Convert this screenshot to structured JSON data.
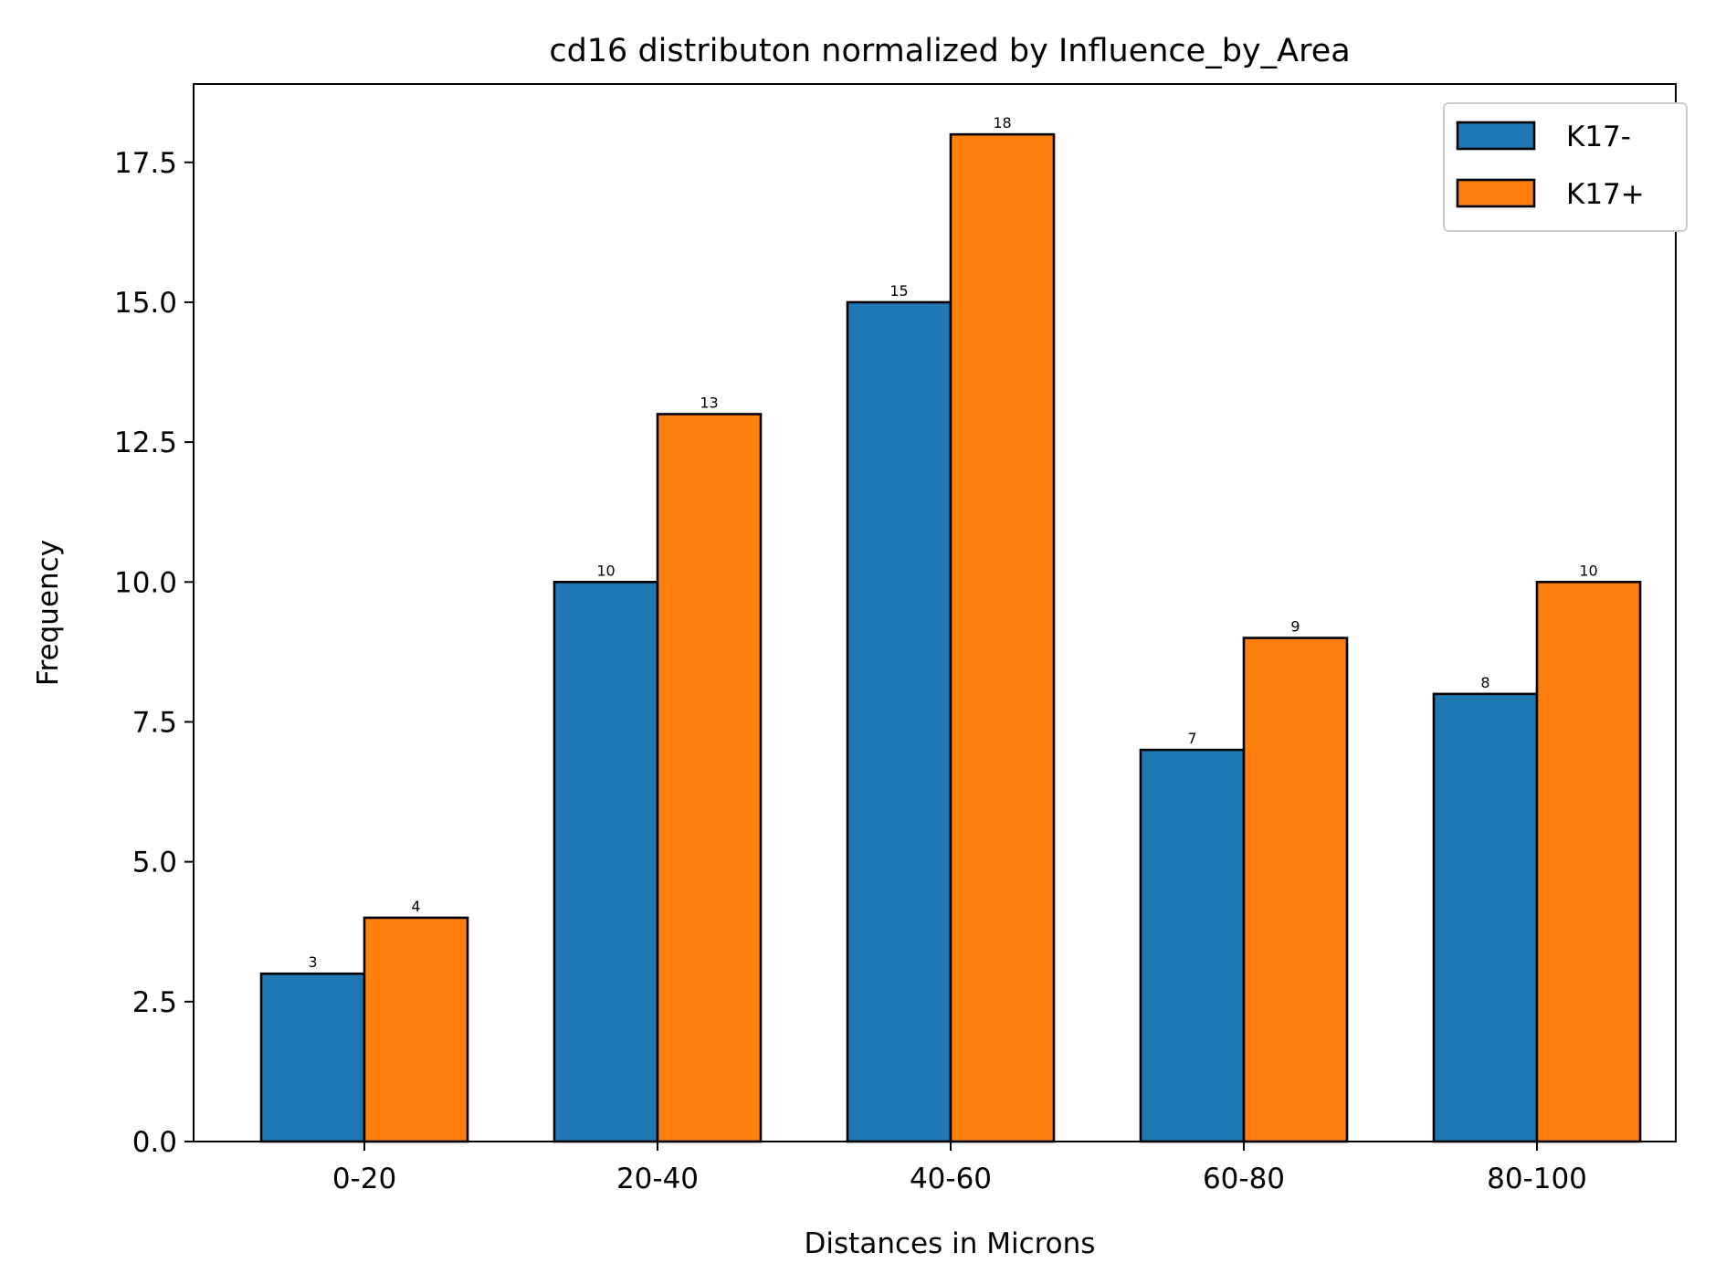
{
  "chart_data": {
    "type": "bar",
    "title": "cd16 distributon normalized by Influence_by_Area",
    "xlabel": "Distances in Microns",
    "ylabel": "Frequency",
    "categories": [
      "0-20",
      "20-40",
      "40-60",
      "60-80",
      "80-100"
    ],
    "series": [
      {
        "name": "K17-",
        "color": "#1f77b4",
        "values": [
          3,
          10,
          15,
          7,
          8
        ]
      },
      {
        "name": "K17+",
        "color": "#ff7f0e",
        "values": [
          4,
          13,
          18,
          9,
          10
        ]
      }
    ],
    "ylim": [
      0,
      18.9
    ],
    "yticks": [
      "0.0",
      "2.5",
      "5.0",
      "7.5",
      "10.0",
      "12.5",
      "15.0",
      "17.5"
    ],
    "ytick_values": [
      0,
      2.5,
      5,
      7.5,
      10,
      12.5,
      15,
      17.5
    ],
    "grid": false,
    "legend_position": "top-right",
    "data_labels": true
  }
}
